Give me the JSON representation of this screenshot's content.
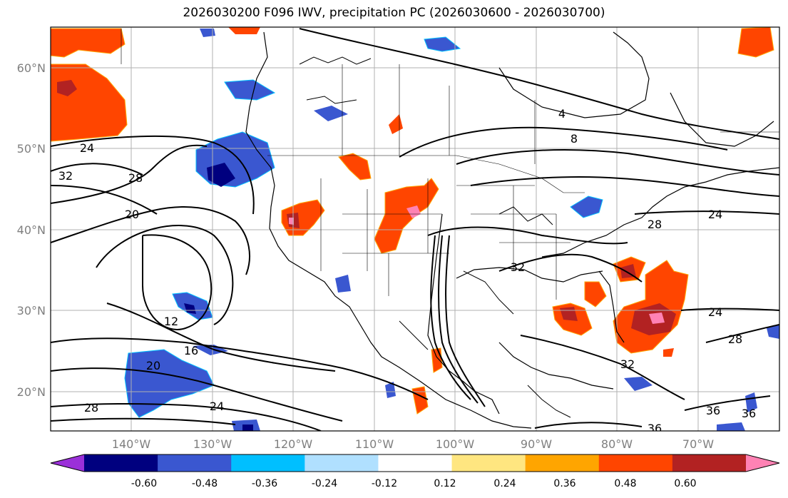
{
  "title": "2026030200 F096 IWV, precipitation PC (2026030600 - 2026030700)",
  "map": {
    "lat_labels": [
      "60°N",
      "50°N",
      "40°N",
      "30°N",
      "20°N"
    ],
    "lon_labels": [
      "140°W",
      "130°W",
      "120°W",
      "110°W",
      "100°W",
      "90°W",
      "80°W",
      "70°W"
    ],
    "grid": true
  },
  "iwv_contour_labels": [
    "24",
    "32",
    "28",
    "20",
    "12",
    "16",
    "20",
    "28",
    "24",
    "4",
    "8",
    "24",
    "28",
    "32",
    "24",
    "28",
    "32",
    "36",
    "36",
    "36"
  ],
  "colorbar": {
    "ticks": [
      "-0.60",
      "-0.48",
      "-0.36",
      "-0.24",
      "-0.12",
      "0.12",
      "0.24",
      "0.36",
      "0.48",
      "0.60"
    ],
    "colors": [
      "#9b30d9",
      "#00007f",
      "#3a57d0",
      "#00bfff",
      "#b0e0ff",
      "#ffffff",
      "#ffe680",
      "#ffa500",
      "#ff4500",
      "#b22222",
      "#ff82b4"
    ]
  }
}
